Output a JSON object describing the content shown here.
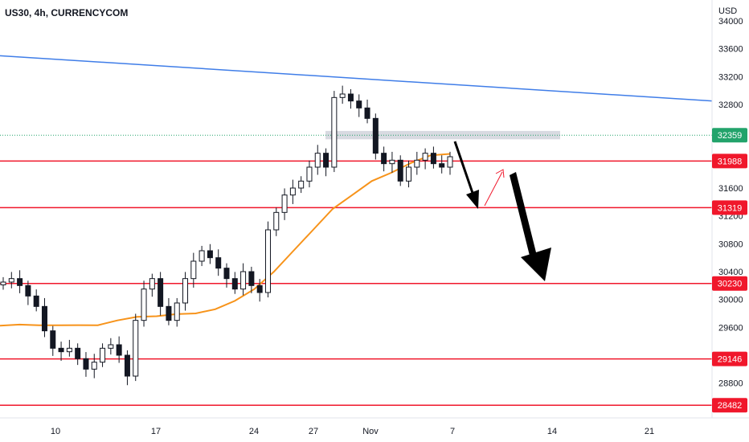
{
  "header": {
    "symbol_title": "US30, 4h, CURRENCYCOM"
  },
  "axis": {
    "currency": "USD"
  },
  "colors": {
    "level_line": "#f0172b",
    "trendline": "#3f7de8",
    "moving_average": "#f7931a",
    "price_line": "#22a36b",
    "candle": "#131722",
    "zone": "#d1d4dc",
    "arrow": "#000000",
    "small_arrow": "#f0172b"
  },
  "chart_data": {
    "type": "candlestick",
    "title": "US30, 4h, CURRENCYCOM",
    "ylabel": "USD",
    "ylim": [
      28300,
      34300
    ],
    "y_ticks": [
      34000,
      33600,
      33200,
      32800,
      31600,
      31200,
      30800,
      30400,
      30000,
      29600,
      28800
    ],
    "x_tick_labels": [
      "10",
      "17",
      "24",
      "27",
      "Nov",
      "7",
      "14",
      "21"
    ],
    "current_price": 32359,
    "levels": [
      31988,
      31319,
      30230,
      29146,
      28482
    ],
    "resistance_zone": {
      "low": 32300,
      "high": 32420
    },
    "trendline": {
      "start": 33500,
      "end": 32850
    },
    "moving_average": [
      29625,
      29640,
      29630,
      29630,
      29632,
      29630,
      29700,
      29750,
      29760,
      29790,
      29800,
      29860,
      29980,
      30150,
      30400,
      30700,
      31000,
      31300,
      31500,
      31700,
      31820,
      31960,
      32070,
      32090
    ],
    "closes": [
      30250,
      30300,
      30200,
      30050,
      29900,
      29550,
      29300,
      29250,
      29300,
      29150,
      29000,
      29100,
      29300,
      29350,
      29200,
      28900,
      29700,
      30150,
      30300,
      29900,
      29700,
      29950,
      30300,
      30550,
      30700,
      30600,
      30450,
      30300,
      30150,
      30400,
      30200,
      30100,
      31000,
      31250,
      31500,
      31600,
      31700,
      31900,
      32100,
      31900,
      32900,
      32950,
      32850,
      32750,
      32600,
      32100,
      31950,
      32000,
      31700,
      31900,
      32000,
      32100,
      31950,
      31900,
      32050
    ]
  }
}
